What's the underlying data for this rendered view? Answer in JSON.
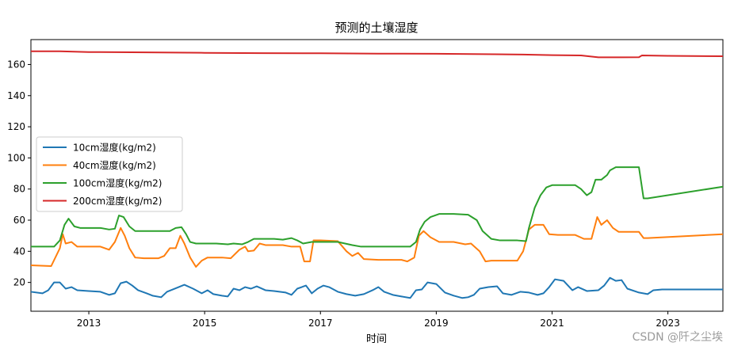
{
  "chart_data": {
    "type": "line",
    "title": "预测的土壤湿度",
    "xlabel": "时间",
    "ylabel": "",
    "xlim": [
      2012.0,
      2023.95
    ],
    "ylim": [
      1.5,
      176
    ],
    "x_ticks": [
      2013,
      2015,
      2017,
      2019,
      2021,
      2023
    ],
    "x_tick_labels": [
      "2013",
      "2015",
      "2017",
      "2019",
      "2021",
      "2023"
    ],
    "y_ticks": [
      20,
      40,
      60,
      80,
      100,
      120,
      140,
      160
    ],
    "y_tick_labels": [
      "20",
      "40",
      "60",
      "80",
      "100",
      "120",
      "140",
      "160"
    ],
    "grid": false,
    "legend_position": "center-left",
    "series": [
      {
        "name": "10cm湿度(kg/m2)",
        "color": "#1f77b4",
        "points": [
          [
            2012.0,
            14
          ],
          [
            2012.2,
            13
          ],
          [
            2012.3,
            15
          ],
          [
            2012.4,
            20
          ],
          [
            2012.5,
            20
          ],
          [
            2012.6,
            16
          ],
          [
            2012.7,
            17
          ],
          [
            2012.8,
            15
          ],
          [
            2013.0,
            14.5
          ],
          [
            2013.2,
            14
          ],
          [
            2013.35,
            12
          ],
          [
            2013.45,
            13
          ],
          [
            2013.55,
            19.5
          ],
          [
            2013.65,
            20.5
          ],
          [
            2013.75,
            18
          ],
          [
            2013.85,
            15
          ],
          [
            2014.0,
            13
          ],
          [
            2014.1,
            11.5
          ],
          [
            2014.25,
            10.5
          ],
          [
            2014.35,
            14
          ],
          [
            2014.55,
            17
          ],
          [
            2014.65,
            18.5
          ],
          [
            2014.8,
            16
          ],
          [
            2014.95,
            13
          ],
          [
            2015.05,
            15
          ],
          [
            2015.15,
            12.5
          ],
          [
            2015.3,
            11.5
          ],
          [
            2015.4,
            11
          ],
          [
            2015.5,
            16
          ],
          [
            2015.6,
            15
          ],
          [
            2015.7,
            17
          ],
          [
            2015.8,
            16
          ],
          [
            2015.9,
            17.5
          ],
          [
            2016.05,
            15
          ],
          [
            2016.2,
            14.5
          ],
          [
            2016.4,
            13.5
          ],
          [
            2016.5,
            12
          ],
          [
            2016.6,
            16
          ],
          [
            2016.75,
            18
          ],
          [
            2016.85,
            13
          ],
          [
            2016.95,
            16
          ],
          [
            2017.05,
            18
          ],
          [
            2017.15,
            17
          ],
          [
            2017.3,
            14
          ],
          [
            2017.45,
            12.5
          ],
          [
            2017.6,
            11.5
          ],
          [
            2017.75,
            12.5
          ],
          [
            2017.9,
            15
          ],
          [
            2018.0,
            17
          ],
          [
            2018.1,
            14
          ],
          [
            2018.25,
            12
          ],
          [
            2018.4,
            11
          ],
          [
            2018.55,
            10
          ],
          [
            2018.65,
            15
          ],
          [
            2018.75,
            15.5
          ],
          [
            2018.85,
            20
          ],
          [
            2019.0,
            19
          ],
          [
            2019.15,
            13.5
          ],
          [
            2019.3,
            11.5
          ],
          [
            2019.45,
            10
          ],
          [
            2019.55,
            10.5
          ],
          [
            2019.65,
            12
          ],
          [
            2019.75,
            16
          ],
          [
            2019.9,
            17
          ],
          [
            2020.05,
            17.5
          ],
          [
            2020.15,
            13
          ],
          [
            2020.3,
            12
          ],
          [
            2020.45,
            14
          ],
          [
            2020.6,
            13.5
          ],
          [
            2020.75,
            12
          ],
          [
            2020.85,
            13
          ],
          [
            2020.95,
            17
          ],
          [
            2021.05,
            22
          ],
          [
            2021.2,
            21
          ],
          [
            2021.35,
            15
          ],
          [
            2021.45,
            17
          ],
          [
            2021.6,
            14.5
          ],
          [
            2021.8,
            15
          ],
          [
            2021.9,
            18
          ],
          [
            2022.0,
            23
          ],
          [
            2022.1,
            21
          ],
          [
            2022.2,
            21.5
          ],
          [
            2022.3,
            16
          ],
          [
            2022.5,
            13.5
          ],
          [
            2022.65,
            12.5
          ],
          [
            2022.75,
            15
          ],
          [
            2022.9,
            15.5
          ],
          [
            2023.95,
            15.5
          ]
        ]
      },
      {
        "name": "40cm湿度(kg/m2)",
        "color": "#ff7f0e",
        "points": [
          [
            2012.0,
            31
          ],
          [
            2012.35,
            30.5
          ],
          [
            2012.5,
            42
          ],
          [
            2012.55,
            51
          ],
          [
            2012.6,
            45
          ],
          [
            2012.7,
            46
          ],
          [
            2012.8,
            43
          ],
          [
            2013.0,
            43
          ],
          [
            2013.2,
            43
          ],
          [
            2013.35,
            41
          ],
          [
            2013.45,
            46
          ],
          [
            2013.55,
            55
          ],
          [
            2013.62,
            50
          ],
          [
            2013.7,
            42
          ],
          [
            2013.8,
            36
          ],
          [
            2013.95,
            35.5
          ],
          [
            2014.2,
            35.5
          ],
          [
            2014.3,
            37
          ],
          [
            2014.4,
            42
          ],
          [
            2014.5,
            42
          ],
          [
            2014.58,
            50
          ],
          [
            2014.65,
            45
          ],
          [
            2014.75,
            36
          ],
          [
            2014.85,
            30
          ],
          [
            2014.95,
            34
          ],
          [
            2015.05,
            36
          ],
          [
            2015.3,
            36
          ],
          [
            2015.45,
            35.5
          ],
          [
            2015.6,
            41
          ],
          [
            2015.7,
            43
          ],
          [
            2015.75,
            40
          ],
          [
            2015.85,
            40.5
          ],
          [
            2015.95,
            45
          ],
          [
            2016.05,
            44
          ],
          [
            2016.2,
            44
          ],
          [
            2016.35,
            44
          ],
          [
            2016.5,
            43
          ],
          [
            2016.65,
            43
          ],
          [
            2016.72,
            33.5
          ],
          [
            2016.82,
            33.5
          ],
          [
            2016.88,
            47
          ],
          [
            2017.0,
            47
          ],
          [
            2017.3,
            46.5
          ],
          [
            2017.45,
            40
          ],
          [
            2017.55,
            37
          ],
          [
            2017.65,
            39
          ],
          [
            2017.75,
            35
          ],
          [
            2018.0,
            34.5
          ],
          [
            2018.4,
            34.5
          ],
          [
            2018.5,
            33.5
          ],
          [
            2018.62,
            36
          ],
          [
            2018.7,
            50
          ],
          [
            2018.78,
            53
          ],
          [
            2018.9,
            49
          ],
          [
            2019.05,
            46
          ],
          [
            2019.3,
            46
          ],
          [
            2019.5,
            44.5
          ],
          [
            2019.6,
            45
          ],
          [
            2019.75,
            40
          ],
          [
            2019.85,
            33.5
          ],
          [
            2019.95,
            34
          ],
          [
            2020.15,
            34
          ],
          [
            2020.4,
            34
          ],
          [
            2020.5,
            40
          ],
          [
            2020.6,
            54
          ],
          [
            2020.7,
            57
          ],
          [
            2020.85,
            57
          ],
          [
            2020.95,
            51
          ],
          [
            2021.1,
            50.5
          ],
          [
            2021.4,
            50.5
          ],
          [
            2021.55,
            48
          ],
          [
            2021.68,
            48
          ],
          [
            2021.78,
            62
          ],
          [
            2021.85,
            57
          ],
          [
            2021.95,
            60
          ],
          [
            2022.05,
            55
          ],
          [
            2022.15,
            52.5
          ],
          [
            2022.35,
            52.5
          ],
          [
            2022.5,
            52.5
          ],
          [
            2022.58,
            48.5
          ],
          [
            2022.65,
            48.5
          ],
          [
            2023.95,
            51
          ]
        ]
      },
      {
        "name": "100cm湿度(kg/m2)",
        "color": "#2ca02c",
        "points": [
          [
            2012.0,
            43
          ],
          [
            2012.4,
            43
          ],
          [
            2012.5,
            47
          ],
          [
            2012.58,
            57
          ],
          [
            2012.65,
            61
          ],
          [
            2012.75,
            56
          ],
          [
            2012.85,
            55
          ],
          [
            2013.0,
            55
          ],
          [
            2013.2,
            55
          ],
          [
            2013.35,
            54
          ],
          [
            2013.45,
            54.5
          ],
          [
            2013.52,
            63
          ],
          [
            2013.6,
            62
          ],
          [
            2013.7,
            56
          ],
          [
            2013.8,
            53
          ],
          [
            2014.0,
            53
          ],
          [
            2014.2,
            53
          ],
          [
            2014.4,
            53
          ],
          [
            2014.5,
            55
          ],
          [
            2014.6,
            55.5
          ],
          [
            2014.68,
            51
          ],
          [
            2014.75,
            46
          ],
          [
            2014.85,
            45
          ],
          [
            2015.0,
            45
          ],
          [
            2015.2,
            45
          ],
          [
            2015.4,
            44.5
          ],
          [
            2015.5,
            45
          ],
          [
            2015.65,
            44.5
          ],
          [
            2015.75,
            46
          ],
          [
            2015.85,
            48
          ],
          [
            2016.0,
            48
          ],
          [
            2016.2,
            48
          ],
          [
            2016.35,
            47.5
          ],
          [
            2016.5,
            48.5
          ],
          [
            2016.6,
            47
          ],
          [
            2016.7,
            45
          ],
          [
            2016.85,
            46
          ],
          [
            2017.0,
            46
          ],
          [
            2017.3,
            46
          ],
          [
            2017.55,
            44
          ],
          [
            2017.7,
            43
          ],
          [
            2018.0,
            43
          ],
          [
            2018.4,
            43
          ],
          [
            2018.55,
            43
          ],
          [
            2018.65,
            46
          ],
          [
            2018.72,
            54
          ],
          [
            2018.8,
            59
          ],
          [
            2018.9,
            62
          ],
          [
            2019.05,
            64
          ],
          [
            2019.3,
            64
          ],
          [
            2019.55,
            63.5
          ],
          [
            2019.7,
            60
          ],
          [
            2019.8,
            53
          ],
          [
            2019.95,
            48
          ],
          [
            2020.1,
            47
          ],
          [
            2020.4,
            47
          ],
          [
            2020.55,
            46.5
          ],
          [
            2020.6,
            55
          ],
          [
            2020.7,
            68
          ],
          [
            2020.8,
            76
          ],
          [
            2020.9,
            81
          ],
          [
            2021.0,
            82.5
          ],
          [
            2021.2,
            82.5
          ],
          [
            2021.4,
            82.5
          ],
          [
            2021.5,
            80
          ],
          [
            2021.6,
            76
          ],
          [
            2021.68,
            78
          ],
          [
            2021.75,
            86
          ],
          [
            2021.85,
            86
          ],
          [
            2021.95,
            89
          ],
          [
            2022.0,
            92
          ],
          [
            2022.1,
            94
          ],
          [
            2022.25,
            94
          ],
          [
            2022.5,
            94
          ],
          [
            2022.58,
            74
          ],
          [
            2022.65,
            74
          ],
          [
            2023.95,
            81.5
          ]
        ]
      },
      {
        "name": "200cm湿度(kg/m2)",
        "color": "#d62728",
        "points": [
          [
            2012.0,
            168.5
          ],
          [
            2012.5,
            168.5
          ],
          [
            2013.0,
            168
          ],
          [
            2014.0,
            167.8
          ],
          [
            2015.0,
            167.5
          ],
          [
            2016.0,
            167.3
          ],
          [
            2017.0,
            167.2
          ],
          [
            2018.0,
            167
          ],
          [
            2019.0,
            166.9
          ],
          [
            2020.0,
            166.6
          ],
          [
            2020.5,
            166.4
          ],
          [
            2021.0,
            166
          ],
          [
            2021.5,
            165.8
          ],
          [
            2021.8,
            164.6
          ],
          [
            2022.2,
            164.6
          ],
          [
            2022.5,
            164.7
          ],
          [
            2022.55,
            165.8
          ],
          [
            2023.0,
            165.6
          ],
          [
            2023.95,
            165.3
          ]
        ]
      }
    ]
  },
  "watermark": "CSDN @阡之尘埃"
}
